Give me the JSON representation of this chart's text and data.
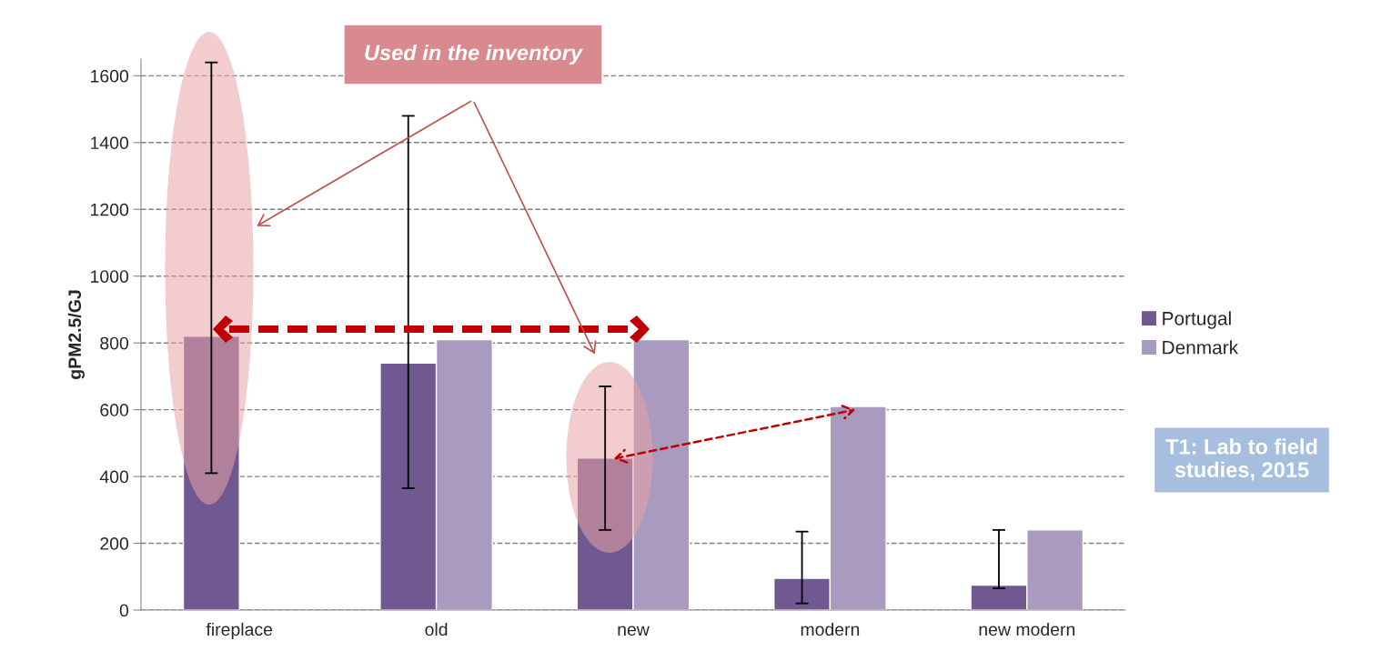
{
  "chart_data": {
    "type": "bar",
    "ylabel": "gPM2.5/GJ",
    "categories": [
      "fireplace",
      "old",
      "new",
      "modern",
      "new modern"
    ],
    "series": [
      {
        "name": "Portugal",
        "color": "#705890",
        "values": [
          820,
          740,
          455,
          95,
          75
        ],
        "errors": [
          [
            410,
            1640
          ],
          [
            365,
            1480
          ],
          [
            240,
            670
          ],
          [
            20,
            235
          ],
          [
            65,
            240
          ]
        ]
      },
      {
        "name": "Denmark",
        "color": "#a89bbf",
        "values": [
          null,
          810,
          810,
          610,
          240
        ]
      }
    ],
    "ylim": [
      0,
      1650
    ],
    "yticks": [
      0,
      200,
      400,
      600,
      800,
      1000,
      1200,
      1400,
      1600
    ],
    "grid": "y",
    "legend": "right",
    "annotations": [
      "Used in the inventory",
      "T1: Lab to field studies, 2015"
    ]
  }
}
